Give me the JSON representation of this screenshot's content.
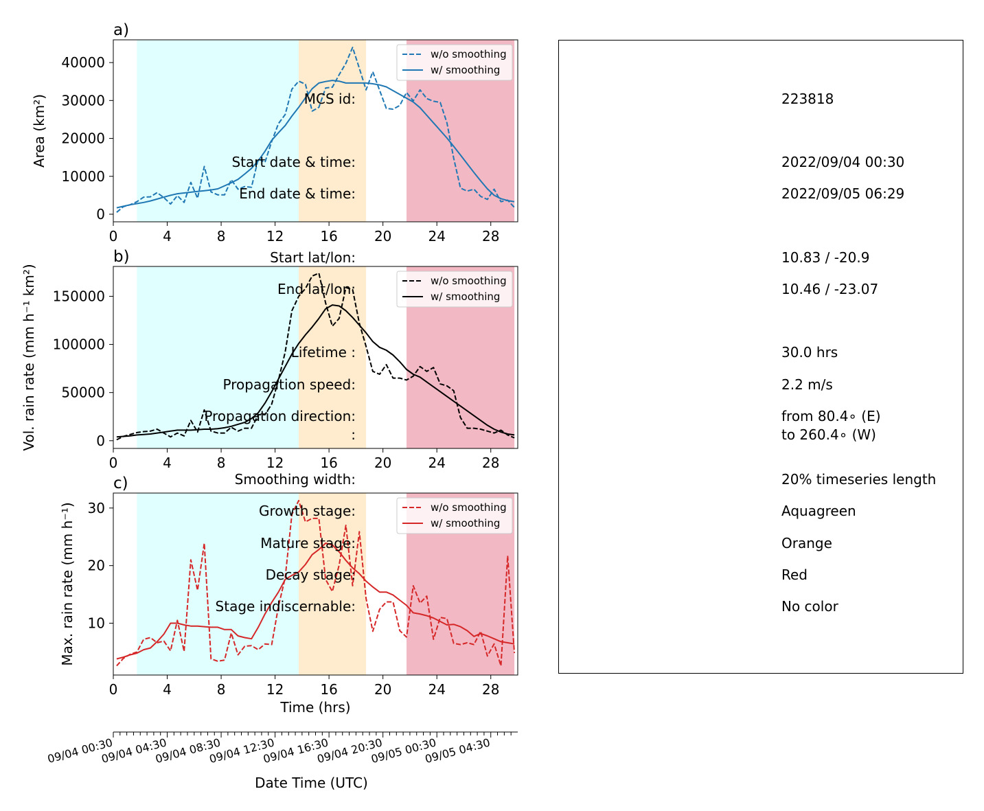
{
  "panels": [
    {
      "panel_label": "a)",
      "ylabel": "Area  (km²)",
      "color": "#1f77b4",
      "legend": [
        "w/o smoothing",
        "w/ smoothing"
      ],
      "yticks": [
        0,
        10000,
        20000,
        30000,
        40000
      ],
      "ylim": [
        -2000,
        46000
      ]
    },
    {
      "panel_label": "b)",
      "ylabel": "Vol. rain rate (mm h⁻¹ km²)",
      "color": "#000000",
      "legend": [
        "w/o smoothing",
        "w/ smoothing"
      ],
      "yticks": [
        0,
        50000,
        100000,
        150000
      ],
      "ylim": [
        -8000,
        181000
      ]
    },
    {
      "panel_label": "c)",
      "ylabel": "Max. rain rate  (mm h⁻¹)",
      "color": "#d62728",
      "legend": [
        "w/o smoothing",
        "w/ smoothing"
      ],
      "yticks": [
        10,
        20,
        30
      ],
      "ylim": [
        1,
        32.6
      ]
    }
  ],
  "stages_bands": [
    {
      "stage": "growth",
      "x0": 1.75,
      "x1": 13.75,
      "color": "#e0ffff"
    },
    {
      "stage": "mature",
      "x0": 13.75,
      "x1": 18.75,
      "color": "#ffebcd"
    },
    {
      "stage": "decay",
      "x0": 21.75,
      "x1": 29.75,
      "color": "#f2b8c3"
    }
  ],
  "xaxis": {
    "xlabel": "Time (hrs)",
    "xticks": [
      0,
      4,
      8,
      12,
      16,
      20,
      24,
      28
    ],
    "xlim": [
      0,
      30
    ]
  },
  "date_axis": {
    "label": "Date Time (UTC)",
    "ticks": [
      {
        "t": 0,
        "label": "09/04 00:30"
      },
      {
        "t": 4,
        "label": "09/04 04:30"
      },
      {
        "t": 8,
        "label": "09/04 08:30"
      },
      {
        "t": 12,
        "label": "09/04 12:30"
      },
      {
        "t": 16,
        "label": "09/04 16:30"
      },
      {
        "t": 20,
        "label": "09/04 20:30"
      },
      {
        "t": 24,
        "label": "09/05 00:30"
      },
      {
        "t": 28,
        "label": "09/05 04:30"
      }
    ]
  },
  "chart_data": [
    {
      "type": "line",
      "panel": "a",
      "ylabel": "Area  (km²)",
      "x": [
        0.25,
        0.75,
        1.25,
        1.75,
        2.25,
        2.75,
        3.25,
        3.75,
        4.25,
        4.75,
        5.25,
        5.75,
        6.25,
        6.75,
        7.25,
        7.75,
        8.25,
        8.75,
        9.25,
        9.75,
        10.25,
        10.75,
        11.25,
        11.75,
        12.25,
        12.75,
        13.25,
        13.75,
        14.25,
        14.75,
        15.25,
        15.75,
        16.25,
        16.75,
        17.25,
        17.75,
        18.25,
        18.75,
        19.25,
        19.75,
        20.25,
        20.75,
        21.25,
        21.75,
        22.25,
        22.75,
        23.25,
        23.75,
        24.25,
        24.75,
        25.25,
        25.75,
        26.25,
        26.75,
        27.25,
        27.75,
        28.25,
        28.75,
        29.25,
        29.75
      ],
      "series": [
        {
          "name": "w/o smoothing",
          "style": "dashed",
          "values": [
            500,
            2000,
            2500,
            3300,
            4500,
            4600,
            5700,
            4400,
            2700,
            4900,
            3100,
            8400,
            4200,
            12600,
            5900,
            5100,
            5100,
            9100,
            6600,
            7300,
            7100,
            14600,
            13700,
            19200,
            23900,
            26300,
            33000,
            35100,
            34300,
            27200,
            28200,
            33300,
            33500,
            36800,
            39800,
            44000,
            38500,
            32800,
            37600,
            32700,
            27900,
            27700,
            28700,
            32100,
            29900,
            32800,
            30500,
            29800,
            29500,
            24100,
            14800,
            6900,
            6100,
            6600,
            4700,
            3900,
            6600,
            3300,
            3700,
            1800
          ]
        },
        {
          "name": "w/ smoothing",
          "style": "solid",
          "values": [
            1700,
            2100,
            2500,
            2800,
            3100,
            3500,
            4000,
            4500,
            5000,
            5400,
            5600,
            5800,
            6000,
            6200,
            6400,
            6700,
            7500,
            8300,
            9200,
            10600,
            12100,
            14100,
            16600,
            19500,
            21500,
            23400,
            25900,
            28200,
            30700,
            33100,
            34600,
            35000,
            35300,
            35100,
            34600,
            34600,
            34600,
            34600,
            34400,
            34100,
            33600,
            32600,
            31600,
            30600,
            29600,
            28100,
            26100,
            24100,
            22100,
            20100,
            17900,
            15600,
            13300,
            11000,
            8800,
            6700,
            5000,
            4100,
            3600,
            3300
          ]
        }
      ],
      "xlim": [
        0,
        30
      ],
      "ylim": [
        -2000,
        46000
      ]
    },
    {
      "type": "line",
      "panel": "b",
      "ylabel": "Vol. rain rate (mm h⁻¹ km²)",
      "x": [
        0.25,
        0.75,
        1.25,
        1.75,
        2.25,
        2.75,
        3.25,
        3.75,
        4.25,
        4.75,
        5.25,
        5.75,
        6.25,
        6.75,
        7.25,
        7.75,
        8.25,
        8.75,
        9.25,
        9.75,
        10.25,
        10.75,
        11.25,
        11.75,
        12.25,
        12.75,
        13.25,
        13.75,
        14.25,
        14.75,
        15.25,
        15.75,
        16.25,
        16.75,
        17.25,
        17.75,
        18.25,
        18.75,
        19.25,
        19.75,
        20.25,
        20.75,
        21.25,
        21.75,
        22.25,
        22.75,
        23.25,
        23.75,
        24.25,
        24.75,
        25.25,
        25.75,
        26.25,
        26.75,
        27.25,
        27.75,
        28.25,
        28.75,
        29.25,
        29.75
      ],
      "series": [
        {
          "name": "w/o smoothing",
          "style": "dashed",
          "values": [
            1000,
            4500,
            6500,
            8500,
            9500,
            10000,
            12000,
            8000,
            4000,
            8000,
            5000,
            21000,
            9000,
            32000,
            10000,
            8000,
            8000,
            14000,
            10000,
            13000,
            13000,
            27000,
            27000,
            38000,
            63000,
            92000,
            135000,
            150000,
            158000,
            171000,
            174000,
            143000,
            119000,
            127000,
            159000,
            157000,
            122000,
            98000,
            72000,
            69000,
            79000,
            65000,
            65000,
            63000,
            67000,
            77000,
            72000,
            76000,
            59000,
            57000,
            52000,
            24000,
            13000,
            13000,
            12000,
            10000,
            8000,
            11000,
            6000,
            3000
          ]
        },
        {
          "name": "w/ smoothing",
          "style": "solid",
          "values": [
            4000,
            4500,
            5000,
            6000,
            6500,
            7000,
            8000,
            9000,
            10000,
            11000,
            11000,
            11000,
            11500,
            12000,
            12000,
            12500,
            13500,
            15000,
            17000,
            19000,
            23000,
            29000,
            39000,
            51000,
            64000,
            77000,
            90000,
            101000,
            110000,
            118000,
            127000,
            137000,
            141000,
            140000,
            135000,
            128000,
            120000,
            112000,
            103000,
            97000,
            94000,
            89000,
            82000,
            74000,
            69000,
            66000,
            61000,
            56000,
            51000,
            46000,
            41000,
            36000,
            31000,
            26000,
            21000,
            16000,
            12000,
            9000,
            7000,
            6000
          ]
        }
      ],
      "xlim": [
        0,
        30
      ],
      "ylim": [
        -8000,
        181000
      ]
    },
    {
      "type": "line",
      "panel": "c",
      "ylabel": "Max. rain rate  (mm h⁻¹)",
      "x": [
        0.25,
        0.75,
        1.25,
        1.75,
        2.25,
        2.75,
        3.25,
        3.75,
        4.25,
        4.75,
        5.25,
        5.75,
        6.25,
        6.75,
        7.25,
        7.75,
        8.25,
        8.75,
        9.25,
        9.75,
        10.25,
        10.75,
        11.25,
        11.75,
        12.25,
        12.75,
        13.25,
        13.75,
        14.25,
        14.75,
        15.25,
        15.75,
        16.25,
        16.75,
        17.25,
        17.75,
        18.25,
        18.75,
        19.25,
        19.75,
        20.25,
        20.75,
        21.25,
        21.75,
        22.25,
        22.75,
        23.25,
        23.75,
        24.25,
        24.75,
        25.25,
        25.75,
        26.25,
        26.75,
        27.25,
        27.75,
        28.25,
        28.75,
        29.25,
        29.75
      ],
      "series": [
        {
          "name": "w/o smoothing",
          "style": "dashed",
          "values": [
            2.6,
            3.9,
            4.6,
            5.0,
            7.2,
            7.5,
            6.6,
            6.9,
            5.2,
            10.5,
            5.1,
            21.0,
            15.7,
            23.9,
            3.8,
            3.4,
            3.6,
            8.3,
            4.5,
            6.0,
            6.1,
            5.4,
            6.4,
            6.3,
            12.9,
            17.9,
            28.9,
            31.3,
            27.6,
            28.2,
            28.2,
            17.6,
            15.5,
            20.1,
            27.0,
            16.5,
            25.9,
            14.3,
            8.6,
            12.4,
            13.7,
            13.7,
            8.7,
            7.6,
            16.5,
            13.5,
            14.7,
            7.2,
            11.0,
            10.8,
            6.5,
            6.3,
            6.6,
            6.3,
            8.6,
            4.3,
            6.4,
            2.6,
            21.7,
            4.8
          ]
        },
        {
          "name": "w/ smoothing",
          "style": "solid",
          "values": [
            3.8,
            4.1,
            4.5,
            4.8,
            5.4,
            5.7,
            6.8,
            8.1,
            10.0,
            10.0,
            9.7,
            9.5,
            9.5,
            9.4,
            9.3,
            9.3,
            8.9,
            8.9,
            7.8,
            7.5,
            7.3,
            9.3,
            11.6,
            13.6,
            15.4,
            17.6,
            18.3,
            18.9,
            20.2,
            21.9,
            22.8,
            23.9,
            23.6,
            22.4,
            20.9,
            19.6,
            18.6,
            17.3,
            16.3,
            15.4,
            15.4,
            14.9,
            14.0,
            13.1,
            11.8,
            11.6,
            11.3,
            10.9,
            10.3,
            9.7,
            9.8,
            9.4,
            8.7,
            7.7,
            8.2,
            7.8,
            7.3,
            6.8,
            6.6,
            6.4
          ]
        }
      ],
      "xlim": [
        0,
        30
      ],
      "ylim": [
        1,
        32.6
      ]
    }
  ],
  "info": [
    {
      "label": "MCS id:",
      "value": "223818"
    },
    {
      "label": "Start date & time:",
      "value": "2022/09/04 00:30"
    },
    {
      "label": "End date & time:",
      "value": "2022/09/05 06:29"
    },
    {
      "label": "Start lat/lon:",
      "value": "10.83 / -20.9"
    },
    {
      "label": "End lat/lon:",
      "value": "10.46 / -23.07"
    },
    {
      "label": "Lifetime :",
      "value": "30.0 hrs"
    },
    {
      "label": "Propagation speed:",
      "value": "2.2 m/s"
    },
    {
      "label": "Propagation direction:",
      "value": "from  80.4∘ (E)"
    },
    {
      "label": ":",
      "value": "to   260.4∘ (W)"
    },
    {
      "label": "Smoothing width:",
      "value": "20% timeseries length"
    },
    {
      "label": "Growth stage:",
      "value": "Aquagreen"
    },
    {
      "label": "Mature stage:",
      "value": "Orange"
    },
    {
      "label": "Decay stage:",
      "value": "Red"
    },
    {
      "label": "Stage indiscernable:",
      "value": "No color"
    }
  ]
}
